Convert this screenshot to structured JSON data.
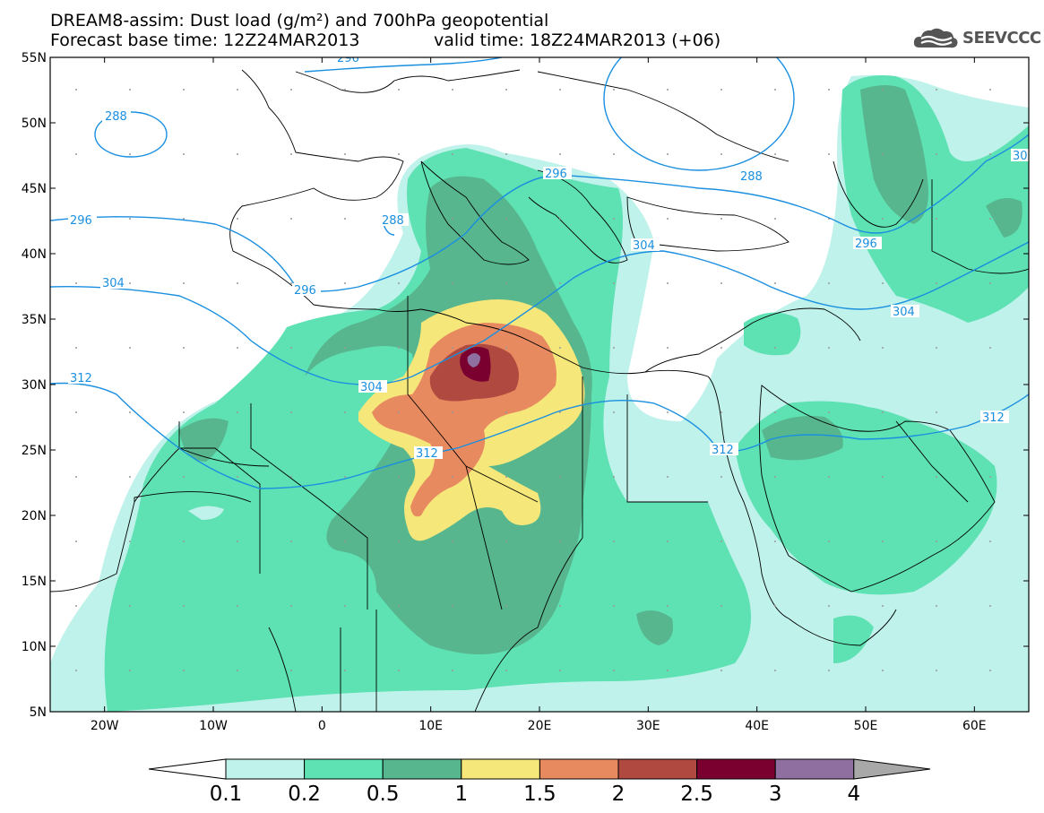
{
  "header": {
    "title_line1": "DREAM8-assim: Dust load (g/m²) and 700hPa geopotential",
    "title_line2_base": "Forecast base time: 12Z24MAR2013",
    "title_line2_valid": "valid time: 18Z24MAR2013 (+06)",
    "logo_text": "SEEVCCC",
    "logo_icon": "cloud-logo-icon"
  },
  "map": {
    "extent": {
      "lon_min": -25,
      "lon_max": 65,
      "lat_min": 5,
      "lat_max": 55
    },
    "lat_labels": [
      "55N",
      "50N",
      "45N",
      "40N",
      "35N",
      "30N",
      "25N",
      "20N",
      "15N",
      "10N",
      "5N"
    ],
    "lon_labels": [
      "20W",
      "10W",
      "0",
      "10E",
      "20E",
      "30E",
      "40E",
      "50E",
      "60E"
    ],
    "geopotential_labels": [
      "296",
      "288",
      "296",
      "288",
      "288",
      "296",
      "30",
      "296",
      "304",
      "296",
      "304",
      "304",
      "304",
      "312",
      "312",
      "312",
      "312"
    ],
    "contour_color": "#1a8fe0",
    "coastline_color": "#000000"
  },
  "colorbar": {
    "labels": [
      "0.1",
      "0.2",
      "0.5",
      "1",
      "1.5",
      "2",
      "2.5",
      "3",
      "4"
    ],
    "colors": [
      "#fefefe",
      "#bff2ea",
      "#5ee1b3",
      "#57b68e",
      "#f5e77a",
      "#e88a60",
      "#b04a40",
      "#7a0030",
      "#8e6fa0",
      "#a8a8a8"
    ]
  }
}
